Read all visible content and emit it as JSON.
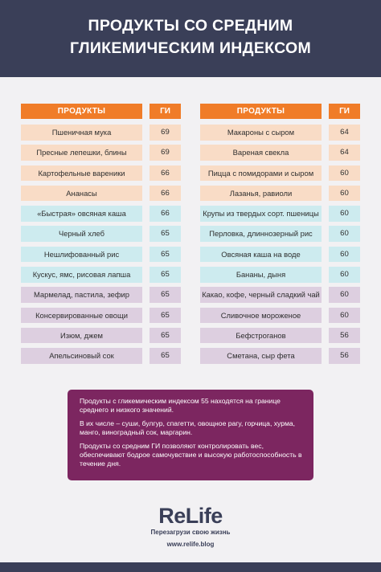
{
  "header": {
    "title_line1": "ПРОДУКТЫ СО СРЕДНИМ",
    "title_line2": "ГЛИКЕМИЧЕСКИМ ИНДЕКСОМ"
  },
  "colors": {
    "header_bg": "#3a3f58",
    "column_header": "#f07c28",
    "peach": "#f9dcc6",
    "cyan": "#cdebef",
    "lavender": "#ddcfe0",
    "note_bg": "#7c2660"
  },
  "table_left": {
    "col_product": "ПРОДУКТЫ",
    "col_gi": "ГИ",
    "rows": [
      {
        "name": "Пшеничная мука",
        "gi": "69",
        "tone": "peach"
      },
      {
        "name": "Пресные лепешки, блины",
        "gi": "69",
        "tone": "peach"
      },
      {
        "name": "Картофельные вареники",
        "gi": "66",
        "tone": "peach"
      },
      {
        "name": "Ананасы",
        "gi": "66",
        "tone": "peach"
      },
      {
        "name": "«Быстрая» овсяная каша",
        "gi": "66",
        "tone": "cyan"
      },
      {
        "name": "Черный хлеб",
        "gi": "65",
        "tone": "cyan"
      },
      {
        "name": "Нешлифованный рис",
        "gi": "65",
        "tone": "cyan"
      },
      {
        "name": "Кускус, ямс, рисовая лапша",
        "gi": "65",
        "tone": "cyan"
      },
      {
        "name": "Мармелад, пастила, зефир",
        "gi": "65",
        "tone": "lavender"
      },
      {
        "name": "Консервированные овощи",
        "gi": "65",
        "tone": "lavender"
      },
      {
        "name": "Изюм, джем",
        "gi": "65",
        "tone": "lavender"
      },
      {
        "name": "Апельсиновый сок",
        "gi": "65",
        "tone": "lavender"
      }
    ]
  },
  "table_right": {
    "col_product": "ПРОДУКТЫ",
    "col_gi": "ГИ",
    "rows": [
      {
        "name": "Макароны с сыром",
        "gi": "64",
        "tone": "peach"
      },
      {
        "name": "Вареная свекла",
        "gi": "64",
        "tone": "peach"
      },
      {
        "name": "Пицца с помидорами и сыром",
        "gi": "60",
        "tone": "peach"
      },
      {
        "name": "Лазанья, равиоли",
        "gi": "60",
        "tone": "peach"
      },
      {
        "name": "Крупы из твердых сорт. пшеницы",
        "gi": "60",
        "tone": "cyan"
      },
      {
        "name": "Перловка, длиннозерный рис",
        "gi": "60",
        "tone": "cyan"
      },
      {
        "name": "Овсяная каша на воде",
        "gi": "60",
        "tone": "cyan"
      },
      {
        "name": "Бананы, дыня",
        "gi": "60",
        "tone": "cyan"
      },
      {
        "name": "Какао, кофе, черный сладкий чай",
        "gi": "60",
        "tone": "lavender"
      },
      {
        "name": "Сливочное мороженое",
        "gi": "60",
        "tone": "lavender"
      },
      {
        "name": "Бефстроганов",
        "gi": "56",
        "tone": "lavender"
      },
      {
        "name": "Сметана, сыр фета",
        "gi": "56",
        "tone": "lavender"
      }
    ]
  },
  "note": {
    "p1": "Продукты с гликемическим индексом 55 находятся на границе среднего и низкого значений.",
    "p2": "В их числе – суши, булгур, спагетти, овощное рагу, горчица, хурма, манго, виноградный сок, маргарин.",
    "p3": "Продукты со средним ГИ позволяют контролировать вес, обеспечивают бодрое самочувствие и высокую работоспособность в течение дня."
  },
  "footer": {
    "logo": "ReLife",
    "tagline": "Перезагрузи свою жизнь",
    "url": "www.relife.blog"
  }
}
